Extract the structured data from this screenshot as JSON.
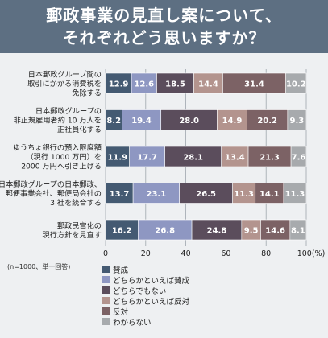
{
  "title": {
    "line1": "郵政事業の見直し案について、",
    "line2": "それぞれどう思いますか？"
  },
  "sample_note": "(n=1000、単一回答)",
  "legend": [
    {
      "label": "賛成",
      "color": "#445a72"
    },
    {
      "label": "どちらかといえば賛成",
      "color": "#8e97c2"
    },
    {
      "label": "どちらでもない",
      "color": "#5b4d5c"
    },
    {
      "label": "どちらかといえば反対",
      "color": "#b3948e"
    },
    {
      "label": "反対",
      "color": "#7c6265"
    },
    {
      "label": "わからない",
      "color": "#a7aaad"
    }
  ],
  "chart_data": {
    "type": "bar",
    "orientation": "horizontal-stacked",
    "categories": [
      [
        "日本郵政グループ間の",
        "取引にかかる消費税を",
        "免除する"
      ],
      [
        "日本郵政グループの",
        "非正規雇用者約 10 万人を",
        "正社員化する"
      ],
      [
        "ゆうちょ銀行の預入限度額",
        "（現行 1000 万円）を",
        "2000 万円へ引き上げる"
      ],
      [
        "日本郵政グループの日本郵政、",
        "郵便事業会社、郵便局会社の",
        "3 社を統合する"
      ],
      [
        "郵政民営化の",
        "現行方針を見直す"
      ]
    ],
    "series": [
      {
        "name": "賛成",
        "values": [
          12.9,
          8.2,
          11.9,
          13.7,
          16.2
        ]
      },
      {
        "name": "どちらかといえば賛成",
        "values": [
          12.6,
          19.4,
          17.7,
          23.1,
          26.8
        ]
      },
      {
        "name": "どちらでもない",
        "values": [
          18.5,
          28.0,
          28.1,
          26.5,
          24.8
        ]
      },
      {
        "name": "どちらかといえば反対",
        "values": [
          14.4,
          14.9,
          13.4,
          11.3,
          9.5
        ]
      },
      {
        "name": "反対",
        "values": [
          31.4,
          20.2,
          21.3,
          14.1,
          14.6
        ]
      },
      {
        "name": "わからない",
        "values": [
          10.2,
          9.3,
          7.6,
          11.3,
          8.1
        ]
      }
    ],
    "value_labels": [
      [
        "12.9",
        "12.6",
        "18.5",
        "14.4",
        "31.4",
        "10.2"
      ],
      [
        "8.2",
        "19.4",
        "28.0",
        "14.9",
        "20.2",
        "9.3"
      ],
      [
        "11.9",
        "17.7",
        "28.1",
        "13.4",
        "21.3",
        "7.6"
      ],
      [
        "13.7",
        "23.1",
        "26.5",
        "11.3",
        "14.1",
        "11.3"
      ],
      [
        "16.2",
        "26.8",
        "24.8",
        "9.5",
        "14.6",
        "8.1"
      ]
    ],
    "xlim": [
      0,
      100
    ],
    "xticks": [
      "0",
      "20",
      "40",
      "60",
      "80",
      "100(%)"
    ],
    "grid": true,
    "legend_position": "bottom"
  }
}
